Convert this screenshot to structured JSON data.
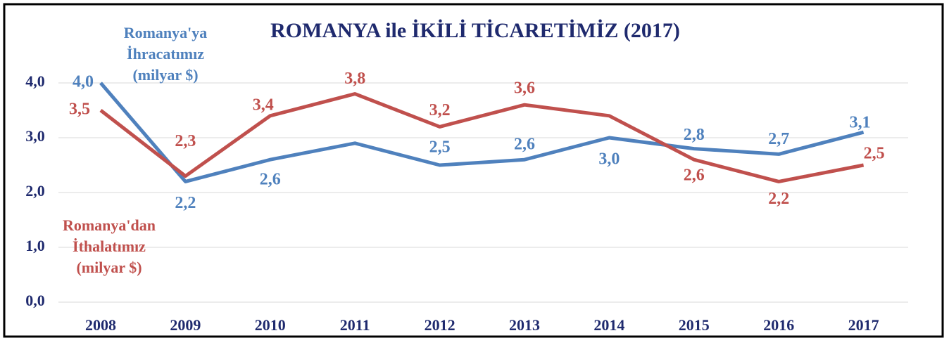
{
  "chart_data": {
    "type": "line",
    "title": "ROMANYA ile İKİLİ TİCARETİMİZ (2017)",
    "categories": [
      "2008",
      "2009",
      "2010",
      "2011",
      "2012",
      "2013",
      "2014",
      "2015",
      "2016",
      "2017"
    ],
    "series": [
      {
        "name": "Romanya'ya İhracatımız (milyar $)",
        "color": "#4f81bd",
        "values": [
          4.0,
          2.2,
          2.6,
          2.9,
          2.5,
          2.6,
          3.0,
          2.8,
          2.7,
          3.1
        ],
        "value_labels": [
          "4,0",
          "2,2",
          "2,6",
          null,
          "2,5",
          "2,6",
          "3,0",
          "2,8",
          "2,7",
          "3,1"
        ]
      },
      {
        "name": "Romanya'dan İthalatımız (milyar $)",
        "color": "#c0504d",
        "values": [
          3.5,
          2.3,
          3.4,
          3.8,
          3.2,
          3.6,
          3.4,
          2.6,
          2.2,
          2.5
        ],
        "value_labels": [
          "3,5",
          "2,3",
          "3,4",
          "3,8",
          "3,2",
          "3,6",
          null,
          "2,6",
          "2,2",
          "2,5"
        ]
      }
    ],
    "ylim": [
      0,
      4
    ],
    "yticks": [
      {
        "value": 0,
        "label": "0,0"
      },
      {
        "value": 1,
        "label": "1,0"
      },
      {
        "value": 2,
        "label": "2,0"
      },
      {
        "value": 3,
        "label": "3,0"
      },
      {
        "value": 4,
        "label": "4,0"
      }
    ],
    "grid": true
  }
}
